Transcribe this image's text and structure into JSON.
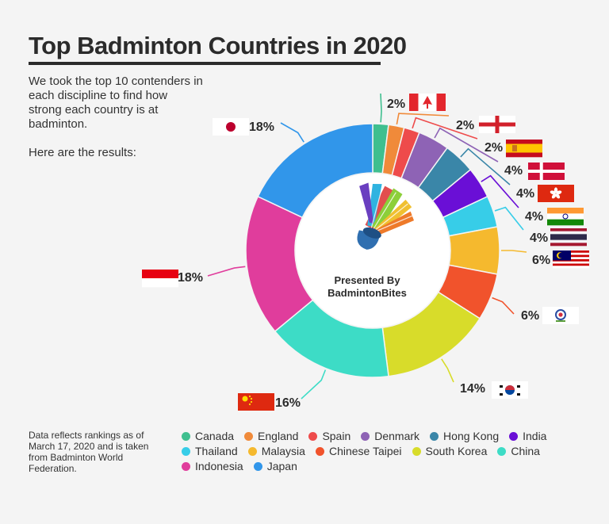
{
  "title": "Top Badminton Countries in 2020",
  "intro": [
    "We took the top 10 contenders in each discipline to find how strong each country is at badminton.",
    "Here are the results:"
  ],
  "center": {
    "line1": "Presented By",
    "line2": "BadmintonBites",
    "logo_icon": "shuttlecock-icon"
  },
  "footnote": "Data reflects rankings as of March 17, 2020 and is taken from Badminton World Federation.",
  "chart_data": {
    "type": "pie",
    "variant": "donut",
    "unit": "%",
    "legend_position": "bottom",
    "slices": [
      {
        "name": "Canada",
        "value": 2,
        "label": "2%",
        "color": "#3fbf8f",
        "flag_icon": "canada-flag-icon"
      },
      {
        "name": "England",
        "value": 2,
        "label": "2%",
        "color": "#f08a3a",
        "flag_icon": "england-flag-icon"
      },
      {
        "name": "Spain",
        "value": 2,
        "label": "2%",
        "color": "#ee4b4b",
        "flag_icon": "spain-flag-icon"
      },
      {
        "name": "Denmark",
        "value": 4,
        "label": "4%",
        "color": "#8e63b5",
        "flag_icon": "denmark-flag-icon"
      },
      {
        "name": "Hong Kong",
        "value": 4,
        "label": "4%",
        "color": "#3a86a8",
        "flag_icon": "hong-kong-flag-icon"
      },
      {
        "name": "India",
        "value": 4,
        "label": "4%",
        "color": "#6a0fd6",
        "flag_icon": "india-flag-icon"
      },
      {
        "name": "Thailand",
        "value": 4,
        "label": "4%",
        "color": "#37cde8",
        "flag_icon": "thailand-flag-icon"
      },
      {
        "name": "Malaysia",
        "value": 6,
        "label": "6%",
        "color": "#f5b92e",
        "flag_icon": "malaysia-flag-icon"
      },
      {
        "name": "Chinese Taipei",
        "value": 6,
        "label": "6%",
        "color": "#f1532c",
        "flag_icon": "chinese-taipei-flag-icon"
      },
      {
        "name": "South Korea",
        "value": 14,
        "label": "14%",
        "color": "#d8dc2a",
        "flag_icon": "south-korea-flag-icon"
      },
      {
        "name": "China",
        "value": 16,
        "label": "16%",
        "color": "#3ddcc6",
        "flag_icon": "china-flag-icon"
      },
      {
        "name": "Indonesia",
        "value": 18,
        "label": "18%",
        "color": "#e03d9c",
        "flag_icon": "indonesia-flag-icon"
      },
      {
        "name": "Japan",
        "value": 18,
        "label": "18%",
        "color": "#3196ea",
        "flag_icon": "japan-flag-icon"
      }
    ]
  }
}
